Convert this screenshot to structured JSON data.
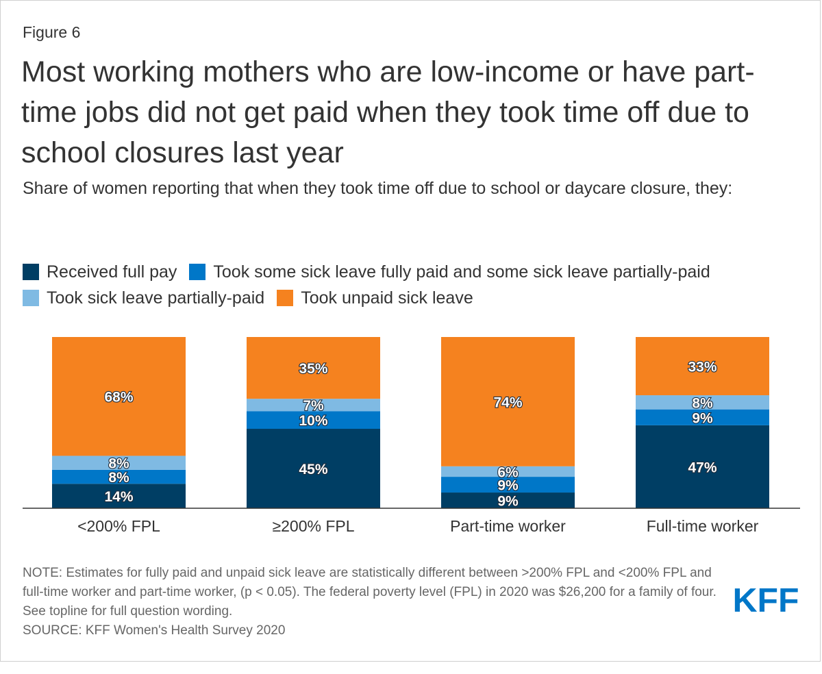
{
  "figure_label": "Figure 6",
  "title": "Most working mothers who are low-income or have part-time jobs did not get paid when they took time off due to school closures last year",
  "subtitle": "Share of women reporting that when they took time off due to school or daycare closure, they:",
  "legend": [
    {
      "label": "Received full pay",
      "color": "#003e64"
    },
    {
      "label": "Took some sick leave fully paid and some sick leave partially-paid",
      "color": "#0077c8"
    },
    {
      "label": "Took sick leave partially-paid",
      "color": "#7fbae3"
    },
    {
      "label": "Took unpaid sick leave",
      "color": "#f5821f"
    }
  ],
  "chart_data": {
    "type": "bar",
    "stacked": true,
    "categories": [
      "<200% FPL",
      "≥200% FPL",
      "Part-time worker",
      "Full-time worker"
    ],
    "series": [
      {
        "name": "Received full pay",
        "color": "#003e64",
        "values": [
          14,
          45,
          9,
          47
        ]
      },
      {
        "name": "Took some sick leave fully paid and some sick leave partially-paid",
        "color": "#0077c8",
        "values": [
          8,
          10,
          9,
          9
        ]
      },
      {
        "name": "Took sick leave partially-paid",
        "color": "#7fbae3",
        "values": [
          8,
          7,
          6,
          8
        ]
      },
      {
        "name": "Took unpaid sick leave",
        "color": "#f5821f",
        "values": [
          68,
          35,
          74,
          33
        ]
      }
    ],
    "value_suffix": "%",
    "ylim": [
      0,
      100
    ],
    "xlabel": "",
    "ylabel": ""
  },
  "notes": {
    "note": "NOTE: Estimates for fully paid and unpaid sick leave are statistically different between >200% FPL and <200% FPL and full-time worker and part-time worker, (p < 0.05). The federal poverty level (FPL) in 2020 was $26,200 for a family of four. See topline for full question wording.",
    "source": "SOURCE: KFF Women's Health Survey 2020"
  },
  "logo_text": "KFF",
  "colors": {
    "brand": "#0077c8",
    "axis": "#333333"
  }
}
